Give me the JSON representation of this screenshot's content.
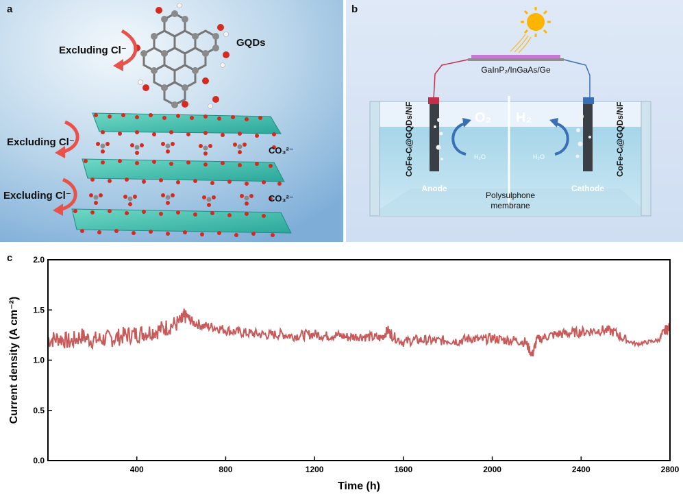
{
  "panel_a": {
    "label": "a",
    "gqds_label": "GQDs",
    "excluding_cl": "Excluding Cl⁻",
    "co3": "CO₃²⁻"
  },
  "panel_b": {
    "label": "b",
    "solar_cell": "GaInP₂/InGaAs/Ge",
    "electrode_left": "CoFe-Cᵢ@GQDs/NF",
    "electrode_right": "CoFe-Cᵢ@GQDs/NF",
    "o2": "O₂",
    "h2": "H₂",
    "h2o": "H₂O",
    "anode": "Anode",
    "cathode": "Cathode",
    "membrane_line1": "Polysulphone",
    "membrane_line2": "membrane"
  },
  "panel_c": {
    "label": "c"
  },
  "colors": {
    "line": "#c85a5a",
    "arrow_red": "#e8524a",
    "arrow_blue": "#3a6fb5",
    "octahedron": "#3fc2b0"
  },
  "chart_data": {
    "type": "line",
    "title": "",
    "xlabel": "Time (h)",
    "ylabel": "Current density (A cm⁻²)",
    "xlim": [
      0,
      2800
    ],
    "ylim": [
      0.0,
      2.0
    ],
    "xticks": [
      400,
      800,
      1200,
      1600,
      2000,
      2400,
      2800
    ],
    "yticks": [
      "0.0",
      "0.5",
      "1.0",
      "1.5",
      "2.0"
    ],
    "series": [
      {
        "name": "Current density",
        "x": [
          0,
          50,
          100,
          150,
          200,
          250,
          300,
          350,
          400,
          450,
          500,
          550,
          600,
          620,
          650,
          700,
          750,
          800,
          850,
          900,
          950,
          1000,
          1050,
          1100,
          1150,
          1200,
          1250,
          1300,
          1350,
          1400,
          1450,
          1500,
          1530,
          1550,
          1600,
          1650,
          1700,
          1750,
          1800,
          1850,
          1900,
          1950,
          2000,
          2050,
          2100,
          2150,
          2180,
          2200,
          2250,
          2300,
          2350,
          2400,
          2450,
          2500,
          2550,
          2600,
          2650,
          2700,
          2750,
          2780,
          2800
        ],
        "values": [
          1.2,
          1.22,
          1.18,
          1.24,
          1.2,
          1.21,
          1.22,
          1.25,
          1.26,
          1.28,
          1.3,
          1.34,
          1.38,
          1.45,
          1.38,
          1.34,
          1.33,
          1.3,
          1.28,
          1.27,
          1.26,
          1.25,
          1.26,
          1.24,
          1.25,
          1.26,
          1.24,
          1.25,
          1.23,
          1.24,
          1.23,
          1.22,
          1.3,
          1.24,
          1.18,
          1.2,
          1.2,
          1.19,
          1.2,
          1.19,
          1.22,
          1.2,
          1.22,
          1.2,
          1.2,
          1.18,
          1.05,
          1.2,
          1.24,
          1.26,
          1.27,
          1.28,
          1.29,
          1.3,
          1.28,
          1.2,
          1.16,
          1.18,
          1.2,
          1.3,
          1.33
        ]
      }
    ]
  }
}
